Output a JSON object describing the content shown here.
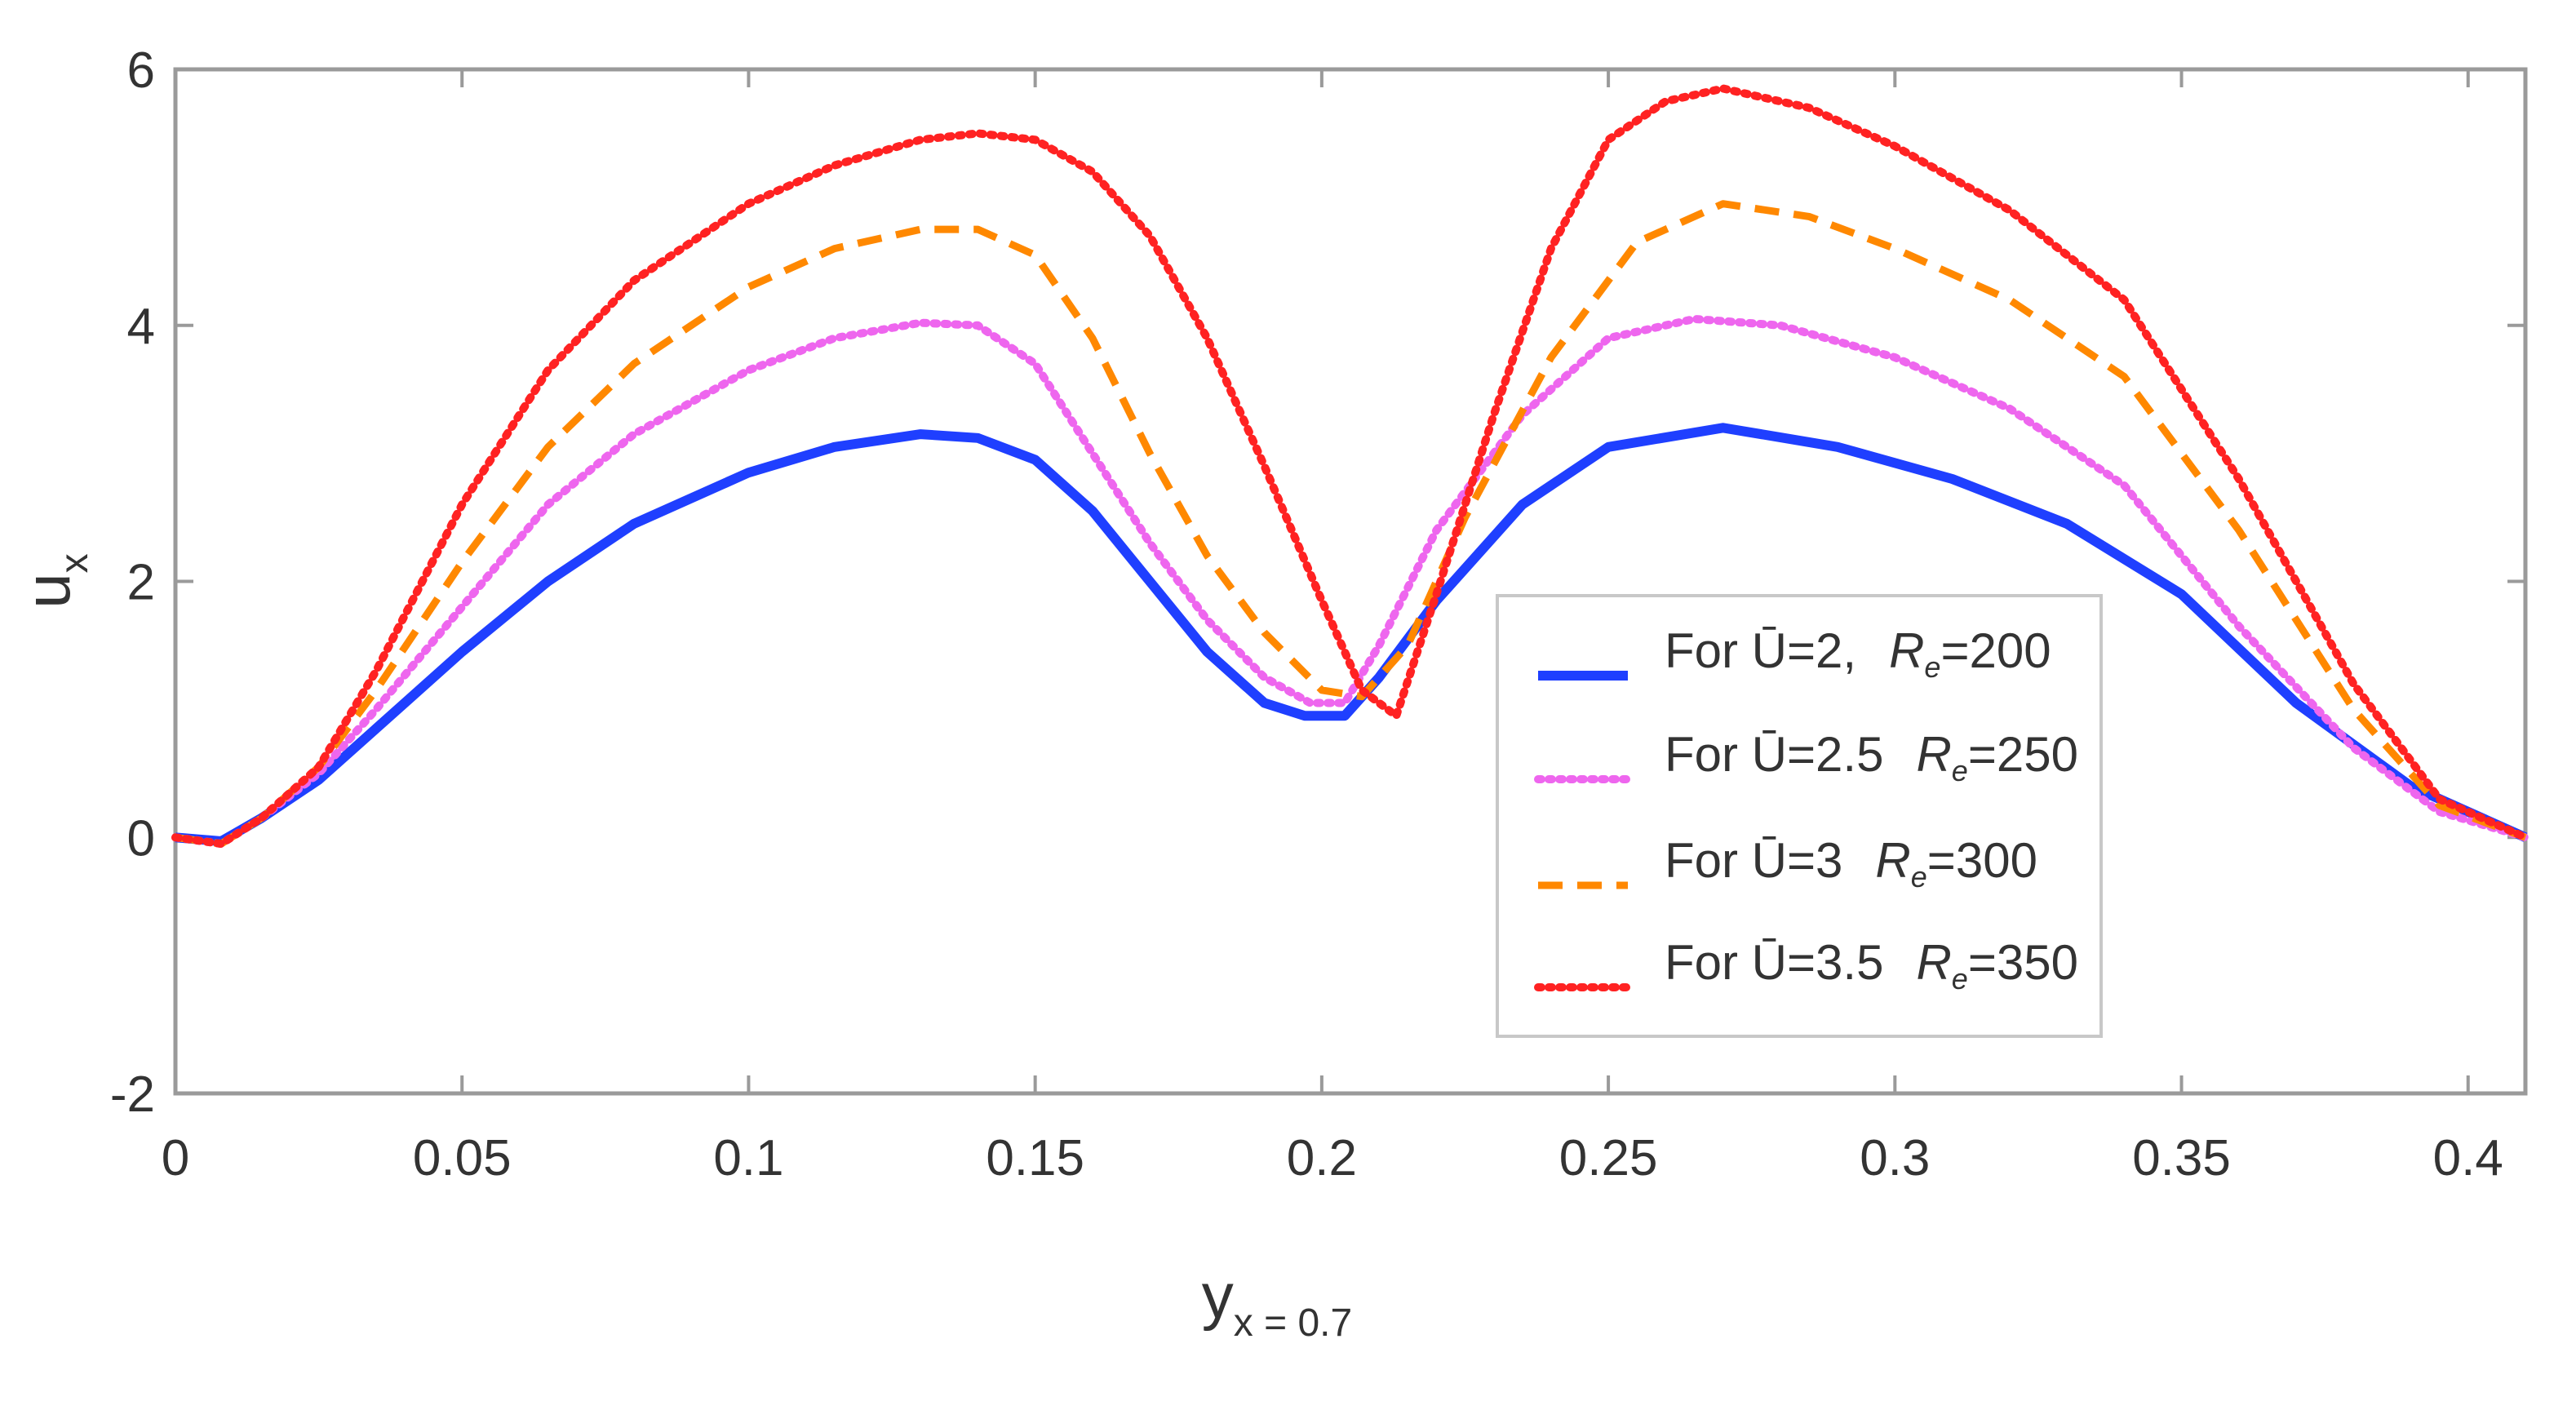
{
  "chart_data": {
    "type": "line",
    "title": "",
    "xlabel": "y",
    "xlabel_sub": "x = 0.7",
    "ylabel": "u",
    "ylabel_sub": "x",
    "xlim": [
      0,
      0.41
    ],
    "ylim": [
      -2,
      6
    ],
    "xticks": [
      "0",
      "0.05",
      "0.1",
      "0.15",
      "0.2",
      "0.25",
      "0.3",
      "0.35",
      "0.4"
    ],
    "yticks": [
      "-2",
      "0",
      "2",
      "4",
      "6"
    ],
    "grid": false,
    "legend_position": "right",
    "series": [
      {
        "name": "For Ū=2,   Re=200",
        "legend": {
          "prefix": "For Ū=2,",
          "re": "R",
          "re_sub": "e",
          "re_value": "=200"
        },
        "color": "#1f3fff",
        "style": "solid",
        "x": [
          0,
          0.008,
          0.015,
          0.025,
          0.035,
          0.05,
          0.065,
          0.08,
          0.1,
          0.115,
          0.13,
          0.14,
          0.15,
          0.16,
          0.17,
          0.18,
          0.19,
          0.197,
          0.204,
          0.21,
          0.22,
          0.235,
          0.25,
          0.27,
          0.29,
          0.31,
          0.33,
          0.35,
          0.37,
          0.39,
          0.41
        ],
        "y": [
          0,
          -0.03,
          0.15,
          0.45,
          0.85,
          1.45,
          2.0,
          2.45,
          2.85,
          3.05,
          3.15,
          3.12,
          2.95,
          2.55,
          2.0,
          1.45,
          1.05,
          0.95,
          0.95,
          1.25,
          1.85,
          2.6,
          3.05,
          3.2,
          3.05,
          2.8,
          2.45,
          1.9,
          1.05,
          0.4,
          0.0
        ]
      },
      {
        "name": "For Ū=2.5 Re=250",
        "legend": {
          "prefix": "For Ū=2.5",
          "re": "R",
          "re_sub": "e",
          "re_value": "=250"
        },
        "color": "#ee66ee",
        "style": "dotted",
        "x": [
          0,
          0.008,
          0.015,
          0.025,
          0.035,
          0.05,
          0.065,
          0.08,
          0.1,
          0.115,
          0.13,
          0.14,
          0.15,
          0.16,
          0.17,
          0.18,
          0.19,
          0.198,
          0.204,
          0.21,
          0.22,
          0.235,
          0.25,
          0.265,
          0.28,
          0.3,
          0.32,
          0.34,
          0.36,
          0.38,
          0.395,
          0.41
        ],
        "y": [
          0,
          -0.05,
          0.15,
          0.5,
          1.0,
          1.8,
          2.6,
          3.15,
          3.65,
          3.9,
          4.02,
          4.0,
          3.7,
          3.0,
          2.3,
          1.7,
          1.25,
          1.05,
          1.05,
          1.5,
          2.4,
          3.3,
          3.9,
          4.05,
          4.0,
          3.75,
          3.35,
          2.75,
          1.65,
          0.7,
          0.2,
          0.0
        ]
      },
      {
        "name": "For Ū=3   Re=300",
        "legend": {
          "prefix": "For Ū=3",
          "re": "R",
          "re_sub": "e",
          "re_value": "=300"
        },
        "color": "#ff8800",
        "style": "dashed",
        "x": [
          0,
          0.008,
          0.015,
          0.025,
          0.035,
          0.05,
          0.065,
          0.08,
          0.1,
          0.115,
          0.13,
          0.14,
          0.15,
          0.16,
          0.17,
          0.18,
          0.19,
          0.2,
          0.207,
          0.215,
          0.225,
          0.24,
          0.255,
          0.27,
          0.285,
          0.3,
          0.32,
          0.34,
          0.36,
          0.38,
          0.395,
          0.41
        ],
        "y": [
          0,
          -0.05,
          0.15,
          0.55,
          1.15,
          2.15,
          3.05,
          3.7,
          4.3,
          4.6,
          4.75,
          4.75,
          4.55,
          3.9,
          3.0,
          2.2,
          1.6,
          1.15,
          1.1,
          1.5,
          2.5,
          3.75,
          4.65,
          4.95,
          4.85,
          4.6,
          4.2,
          3.6,
          2.4,
          1.0,
          0.25,
          0.0
        ]
      },
      {
        "name": "For Ū=3.5 Re=350",
        "legend": {
          "prefix": "For Ū=3.5",
          "re": "R",
          "re_sub": "e",
          "re_value": "=350"
        },
        "color": "#ff2222",
        "style": "dotted",
        "x": [
          0,
          0.008,
          0.015,
          0.025,
          0.035,
          0.05,
          0.065,
          0.08,
          0.1,
          0.115,
          0.13,
          0.14,
          0.15,
          0.16,
          0.17,
          0.18,
          0.19,
          0.2,
          0.207,
          0.213,
          0.22,
          0.23,
          0.24,
          0.25,
          0.26,
          0.27,
          0.285,
          0.3,
          0.32,
          0.34,
          0.36,
          0.38,
          0.395,
          0.41
        ],
        "y": [
          0,
          -0.05,
          0.15,
          0.55,
          1.3,
          2.6,
          3.65,
          4.35,
          4.95,
          5.25,
          5.45,
          5.5,
          5.45,
          5.2,
          4.7,
          3.9,
          2.9,
          1.85,
          1.15,
          0.95,
          1.9,
          3.3,
          4.6,
          5.45,
          5.75,
          5.85,
          5.7,
          5.4,
          4.9,
          4.2,
          2.8,
          1.2,
          0.3,
          0.0
        ]
      }
    ]
  }
}
